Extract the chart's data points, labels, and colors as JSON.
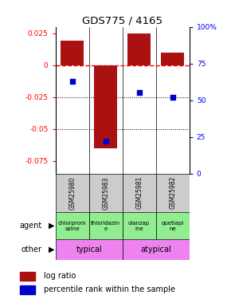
{
  "title": "GDS775 / 4165",
  "samples": [
    "GSM25980",
    "GSM25983",
    "GSM25981",
    "GSM25982"
  ],
  "log_ratios": [
    0.019,
    -0.065,
    0.025,
    0.01
  ],
  "percentile_ranks": [
    63,
    22,
    55,
    52
  ],
  "agents": [
    "chlorprom\nazine",
    "thioridazin\ne",
    "olanzap\nine",
    "quetiapi\nne"
  ],
  "other_groups": [
    [
      "typical",
      2
    ],
    [
      "atypical",
      2
    ]
  ],
  "typical_color": "#EE82EE",
  "atypical_color": "#EE82EE",
  "agent_color": "#90EE90",
  "bar_color": "#AA1111",
  "dot_color": "#0000CC",
  "ylim_left": [
    -0.085,
    0.03
  ],
  "ylim_right": [
    0,
    100
  ],
  "yticks_left": [
    0.025,
    0.0,
    -0.025,
    -0.05,
    -0.075
  ],
  "yticks_right": [
    100,
    75,
    50,
    25,
    0
  ],
  "ytick_labels_left": [
    "0.025",
    "0",
    "-0.025",
    "-0.05",
    "-0.075"
  ],
  "ytick_labels_right": [
    "100%",
    "75",
    "50",
    "25",
    "0"
  ]
}
